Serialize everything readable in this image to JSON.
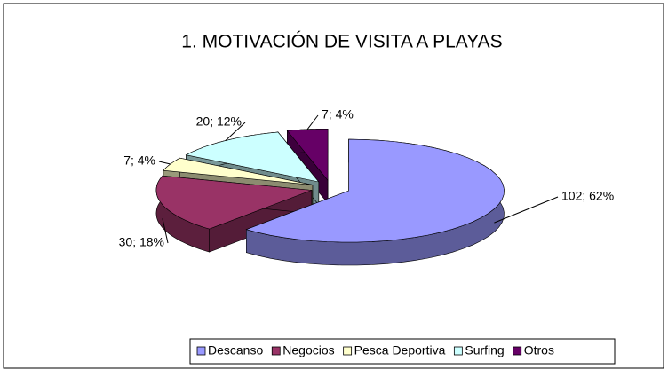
{
  "chart_data": {
    "type": "pie",
    "title": "1. MOTIVACIÓN DE VISITA A PLAYAS",
    "categories": [
      "Descanso",
      "Negocios",
      "Pesca Deportiva",
      "Surfing",
      "Otros"
    ],
    "values": [
      102,
      30,
      7,
      20,
      7
    ],
    "value_labels": [
      "102; 62%",
      "30; 18%",
      "7; 4%",
      "20; 12%",
      "7; 4%"
    ],
    "colors": [
      "#9999ff",
      "#993366",
      "#ffffcc",
      "#ccffff",
      "#660066"
    ],
    "legend": "bottom"
  }
}
